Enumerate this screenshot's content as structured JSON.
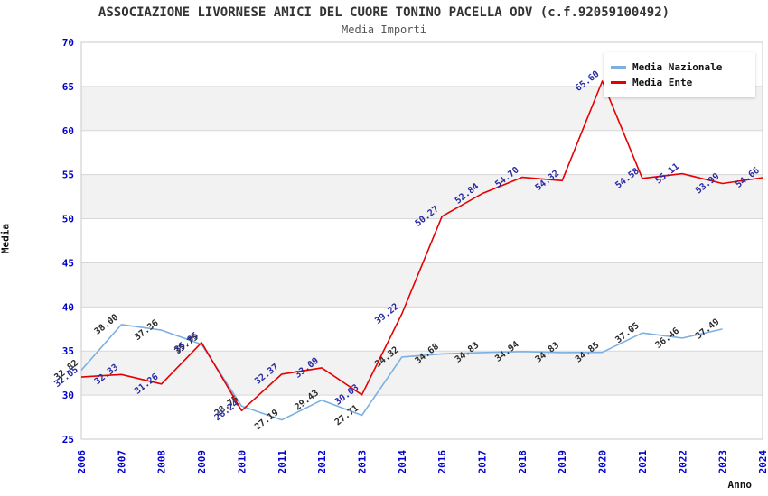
{
  "title": "ASSOCIAZIONE LIVORNESE AMICI DEL CUORE TONINO PACELLA ODV (c.f.92059100492)",
  "subtitle": "Media Importi",
  "axes": {
    "y_label": "Media",
    "x_label": "Anno",
    "y_ticks": [
      25,
      30,
      35,
      40,
      45,
      50,
      55,
      60,
      65,
      70
    ]
  },
  "legend": {
    "items": [
      {
        "label": "Media Nazionale",
        "color": "#7cb0e2"
      },
      {
        "label": "Media Ente",
        "color": "#e60000"
      }
    ]
  },
  "colors": {
    "tick_label": "#0000cc",
    "grid_line": "#d7d7d7",
    "plot_border": "#c9c9c9",
    "band_fill": "#f2f2f2",
    "nazionale_line": "#7cb0e2",
    "ente_line": "#e60000",
    "nazionale_point_label": "#2b2b2b",
    "ente_point_label": "#2929a3"
  },
  "chart_data": {
    "type": "line",
    "title": "ASSOCIAZIONE LIVORNESE AMICI DEL CUORE TONINO PACELLA ODV (c.f.92059100492)",
    "subtitle": "Media Importi",
    "xlabel": "Anno",
    "ylabel": "Media",
    "ylim": [
      25,
      70
    ],
    "grid": true,
    "legend_position": "top-right",
    "band_color": "#f2f2f2",
    "categories": [
      "2006",
      "2007",
      "2008",
      "2009",
      "2010",
      "2011",
      "2012",
      "2013",
      "2014",
      "2016",
      "2017",
      "2018",
      "2019",
      "2020",
      "2021",
      "2022",
      "2023",
      "2024"
    ],
    "series": [
      {
        "name": "Media Nazionale",
        "color": "#7cb0e2",
        "label_color": "#2b2b2b",
        "values": [
          32.82,
          38.0,
          37.36,
          35.75,
          28.75,
          27.19,
          29.43,
          27.71,
          34.32,
          34.68,
          34.83,
          34.94,
          34.83,
          34.85,
          37.05,
          36.46,
          37.49,
          null
        ]
      },
      {
        "name": "Media Ente",
        "color": "#e60000",
        "label_color": "#2929a3",
        "values": [
          32.05,
          32.33,
          31.26,
          35.95,
          28.24,
          32.37,
          33.09,
          30.03,
          39.22,
          50.27,
          52.84,
          54.7,
          54.32,
          65.6,
          54.58,
          55.11,
          53.99,
          54.66
        ]
      }
    ]
  }
}
